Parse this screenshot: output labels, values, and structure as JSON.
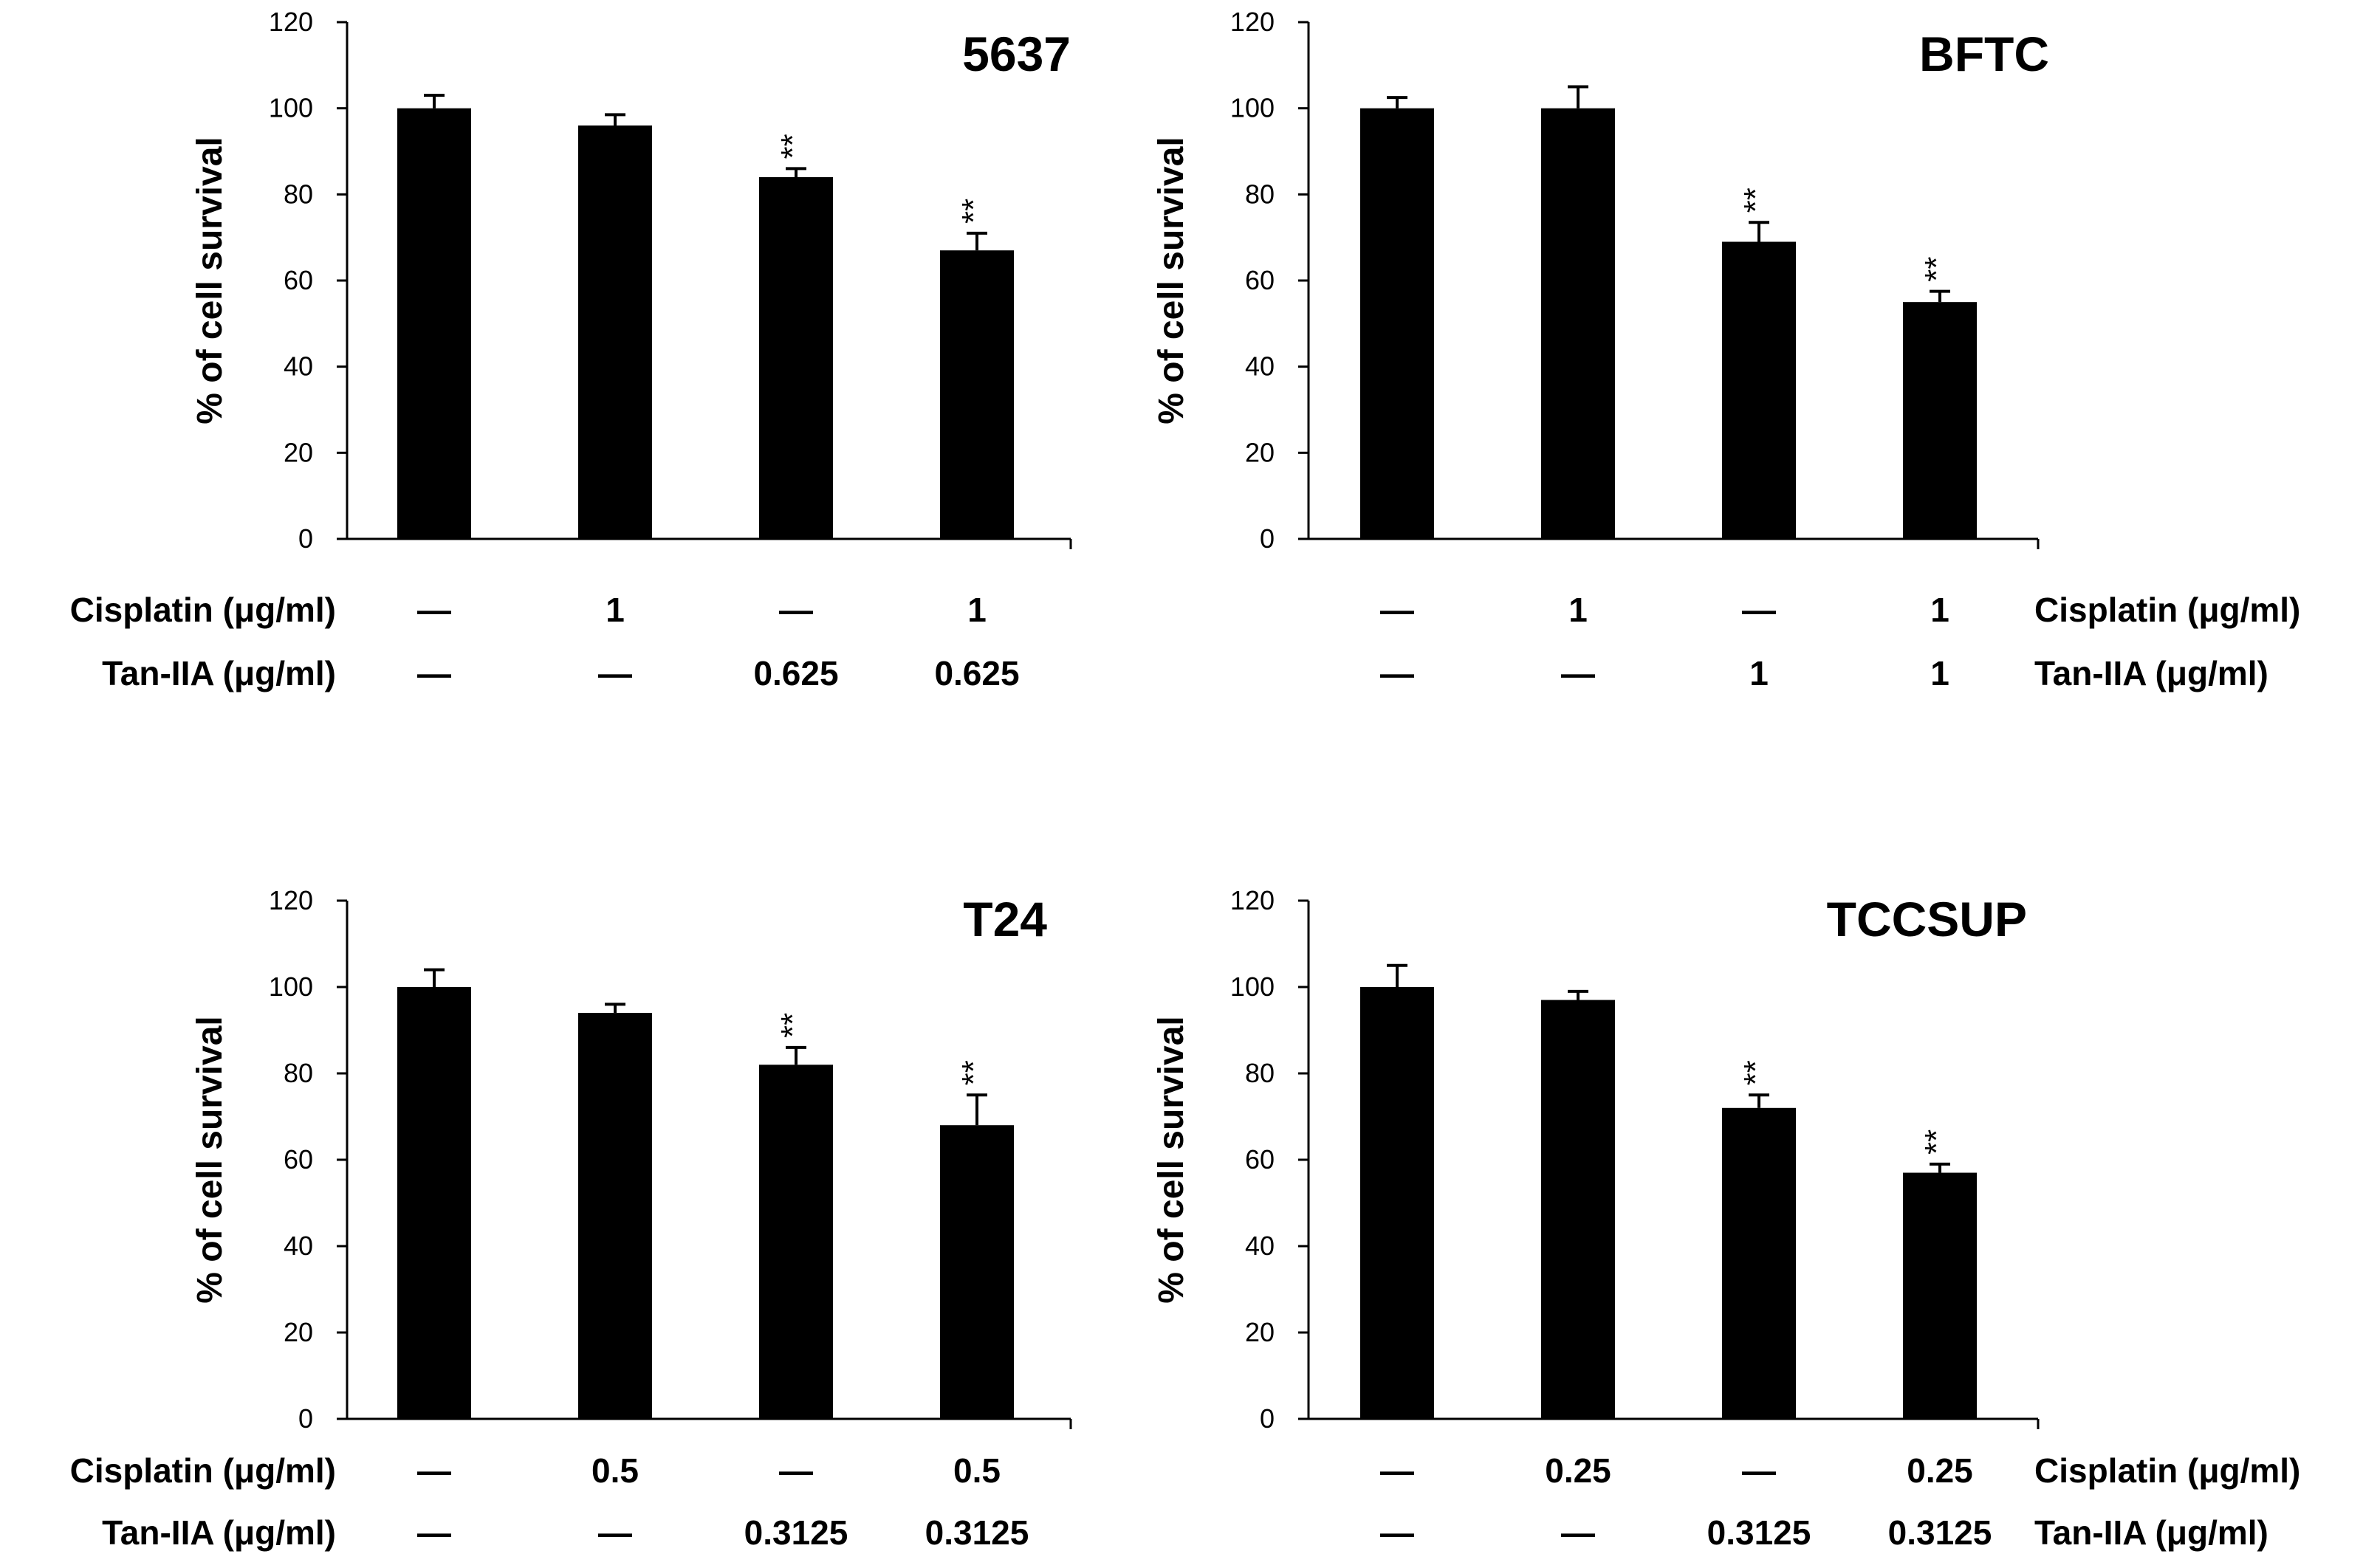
{
  "chart_data": [
    {
      "type": "bar",
      "title": "5637",
      "ylabel": "% of cell survival",
      "ylim": [
        0,
        120
      ],
      "yticks": [
        0,
        20,
        40,
        60,
        80,
        100,
        120
      ],
      "values": [
        100,
        96,
        84,
        67
      ],
      "errors": [
        3,
        2.5,
        2,
        4
      ],
      "significance": [
        "",
        "",
        "**",
        "**"
      ],
      "treatments": [
        {
          "label": "Cisplatin (μg/ml)",
          "values": [
            "—",
            "1",
            "—",
            "1"
          ]
        },
        {
          "label": "Tan-IIA (μg/ml)",
          "values": [
            "—",
            "—",
            "0.625",
            "0.625"
          ]
        }
      ],
      "treatment_labels_side": "left"
    },
    {
      "type": "bar",
      "title": "BFTC",
      "ylabel": "% of cell survival",
      "ylim": [
        0,
        120
      ],
      "yticks": [
        0,
        20,
        40,
        60,
        80,
        100,
        120
      ],
      "values": [
        100,
        100,
        69,
        55
      ],
      "errors": [
        2.5,
        5,
        4.5,
        2.5
      ],
      "significance": [
        "",
        "",
        "**",
        "**"
      ],
      "treatments": [
        {
          "label": "Cisplatin (μg/ml)",
          "values": [
            "—",
            "1",
            "—",
            "1"
          ]
        },
        {
          "label": "Tan-IIA (μg/ml)",
          "values": [
            "—",
            "—",
            "1",
            "1"
          ]
        }
      ],
      "treatment_labels_side": "right"
    },
    {
      "type": "bar",
      "title": "T24",
      "ylabel": "% of cell survival",
      "ylim": [
        0,
        120
      ],
      "yticks": [
        0,
        20,
        40,
        60,
        80,
        100,
        120
      ],
      "values": [
        100,
        94,
        82,
        68
      ],
      "errors": [
        4,
        2,
        4,
        7
      ],
      "significance": [
        "",
        "",
        "**",
        "**"
      ],
      "treatments": [
        {
          "label": "Cisplatin (μg/ml)",
          "values": [
            "—",
            "0.5",
            "—",
            "0.5"
          ]
        },
        {
          "label": "Tan-IIA (μg/ml)",
          "values": [
            "—",
            "—",
            "0.3125",
            "0.3125"
          ]
        }
      ],
      "treatment_labels_side": "left"
    },
    {
      "type": "bar",
      "title": "TCCSUP",
      "ylabel": "% of cell survival",
      "ylim": [
        0,
        120
      ],
      "yticks": [
        0,
        20,
        40,
        60,
        80,
        100,
        120
      ],
      "values": [
        100,
        97,
        72,
        57
      ],
      "errors": [
        5,
        2,
        3,
        2
      ],
      "significance": [
        "",
        "",
        "**",
        "**"
      ],
      "treatments": [
        {
          "label": "Cisplatin (μg/ml)",
          "values": [
            "—",
            "0.25",
            "—",
            "0.25"
          ]
        },
        {
          "label": "Tan-IIA (μg/ml)",
          "values": [
            "—",
            "—",
            "0.3125",
            "0.3125"
          ]
        }
      ],
      "treatment_labels_side": "right"
    }
  ],
  "colors": {
    "bar": "#000000",
    "axis": "#000000",
    "background": "#ffffff"
  }
}
